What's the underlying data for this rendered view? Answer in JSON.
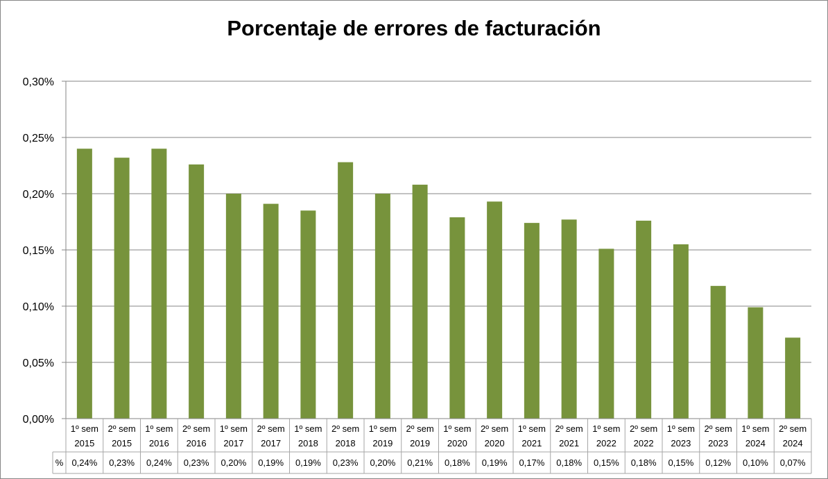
{
  "chart_data": {
    "type": "bar",
    "title": "Porcentaje de errores de facturación",
    "xlabel": "",
    "ylabel": "",
    "ylim": [
      0,
      0.3
    ],
    "yticks": [
      0,
      0.05,
      0.1,
      0.15,
      0.2,
      0.25,
      0.3
    ],
    "ytick_labels": [
      "0,00%",
      "0,05%",
      "0,10%",
      "0,15%",
      "0,20%",
      "0,25%",
      "0,30%"
    ],
    "grid": true,
    "legend": "data-table",
    "colors": {
      "bar": "#77933C",
      "grid": "#868686",
      "axis": "#868686",
      "table_border": "#A6A6A6"
    },
    "categories": [
      [
        "1º sem",
        "2015"
      ],
      [
        "2º sem",
        "2015"
      ],
      [
        "1º sem",
        "2016"
      ],
      [
        "2º sem",
        "2016"
      ],
      [
        "1º sem",
        "2017"
      ],
      [
        "2º sem",
        "2017"
      ],
      [
        "1º sem",
        "2018"
      ],
      [
        "2º sem",
        "2018"
      ],
      [
        "1º sem",
        "2019"
      ],
      [
        "2º sem",
        "2019"
      ],
      [
        "1º sem",
        "2020"
      ],
      [
        "2º sem",
        "2020"
      ],
      [
        "1º sem",
        "2021"
      ],
      [
        "2º sem",
        "2021"
      ],
      [
        "1º sem",
        "2022"
      ],
      [
        "2º sem",
        "2022"
      ],
      [
        "1º sem",
        "2023"
      ],
      [
        "2º sem",
        "2023"
      ],
      [
        "1º sem",
        "2024"
      ],
      [
        "2º sem",
        "2024"
      ]
    ],
    "series": [
      {
        "name": "%",
        "values": [
          0.24,
          0.232,
          0.24,
          0.226,
          0.2,
          0.191,
          0.185,
          0.228,
          0.2,
          0.208,
          0.179,
          0.193,
          0.174,
          0.177,
          0.151,
          0.176,
          0.155,
          0.118,
          0.099,
          0.072
        ],
        "labels": [
          "0,24%",
          "0,23%",
          "0,24%",
          "0,23%",
          "0,20%",
          "0,19%",
          "0,19%",
          "0,23%",
          "0,20%",
          "0,21%",
          "0,18%",
          "0,19%",
          "0,17%",
          "0,18%",
          "0,15%",
          "0,18%",
          "0,15%",
          "0,12%",
          "0,10%",
          "0,07%"
        ]
      }
    ]
  }
}
